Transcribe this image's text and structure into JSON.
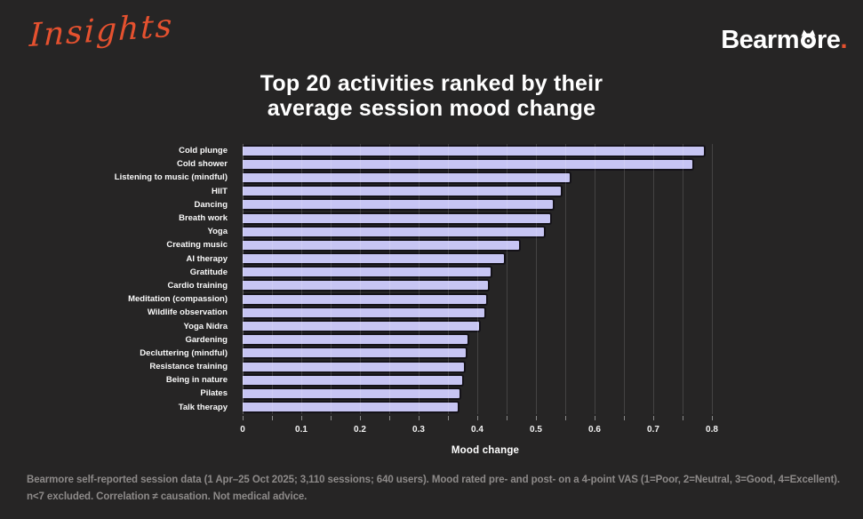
{
  "brand": {
    "insights_logo": "Insights",
    "wordmark_pre": "Bearm",
    "wordmark_post": "re",
    "wordmark_dot": ".",
    "accent_color": "#e5512f"
  },
  "title": {
    "line1": "Top 20 activities ranked by their",
    "line2": "average session mood change"
  },
  "chart_data": {
    "type": "bar",
    "orientation": "horizontal",
    "title": "Top 20 activities ranked by their average session mood change",
    "xlabel": "Mood change",
    "ylabel": "",
    "xlim": [
      0,
      0.825
    ],
    "tick_labels": [
      "0",
      "0.1",
      "0.2",
      "0.3",
      "0.4",
      "0.5",
      "0.6",
      "0.7",
      "0.8"
    ],
    "tick_values": [
      0,
      0.1,
      0.2,
      0.3,
      0.4,
      0.5,
      0.6,
      0.7,
      0.8
    ],
    "gridline_step": 0.05,
    "grid": true,
    "bar_color": "#c7c5f3",
    "background_color": "#262525",
    "categories": [
      "Cold plunge",
      "Cold shower",
      "Listening to music (mindful)",
      "HIIT",
      "Dancing",
      "Breath work",
      "Yoga",
      "Creating music",
      "AI therapy",
      "Gratitude",
      "Cardio training",
      "Meditation (compassion)",
      "Wildlife observation",
      "Yoga Nidra",
      "Gardening",
      "Decluttering (mindful)",
      "Resistance training",
      "Being in nature",
      "Pilates",
      "Talk therapy"
    ],
    "values": [
      0.79,
      0.77,
      0.56,
      0.545,
      0.532,
      0.527,
      0.517,
      0.474,
      0.449,
      0.425,
      0.421,
      0.418,
      0.415,
      0.406,
      0.387,
      0.384,
      0.38,
      0.378,
      0.373,
      0.369
    ]
  },
  "footer": {
    "line1": "Bearmore self-reported session data (1 Apr–25 Oct 2025; 3,110 sessions; 640 users). Mood rated pre- and post- on a 4-point VAS (1=Poor, 2=Neutral, 3=Good, 4=Excellent).",
    "line2": "n<7 excluded. Correlation ≠ causation. Not medical advice."
  }
}
